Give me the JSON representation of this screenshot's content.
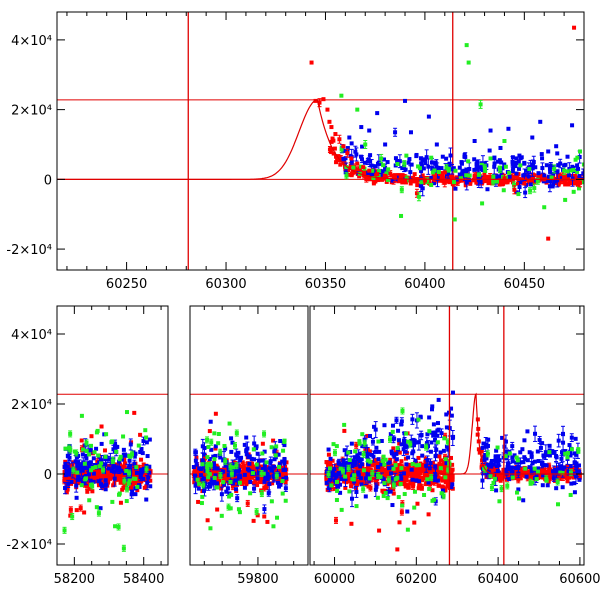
{
  "colors": {
    "model": "#e00000",
    "series_red": "#ff0000",
    "series_green": "#22ee22",
    "series_blue": "#0000ee",
    "axis": "#000000"
  },
  "chart_data": [
    {
      "type": "scatter",
      "title": "",
      "xlabel": "",
      "ylabel": "",
      "xlim": [
        60215,
        60480
      ],
      "ylim": [
        -26000,
        48000
      ],
      "xticks": [
        {
          "v": 60250,
          "label": "60250"
        },
        {
          "v": 60300,
          "label": "60300"
        },
        {
          "v": 60350,
          "label": "60350"
        },
        {
          "v": 60400,
          "label": "60400"
        },
        {
          "v": 60450,
          "label": "60450"
        }
      ],
      "yticks": [
        {
          "v": -20000,
          "label": "-2×10⁴"
        },
        {
          "v": 0,
          "label": "0"
        },
        {
          "v": 20000,
          "label": "2×10⁴"
        },
        {
          "v": 40000,
          "label": "4×10⁴"
        }
      ],
      "hlines": [
        0,
        22800
      ],
      "vlines": [
        60281,
        60414
      ],
      "model": {
        "peak_x": 60346,
        "peak_y": 22800,
        "rise_start": 60281,
        "rise_width": 13,
        "decay_tau": 8
      },
      "series": [
        {
          "color_key": "series_red",
          "points": [
            [
              60343,
              33500
            ],
            [
              60345,
              22500
            ],
            [
              60347,
              22000
            ],
            [
              60349,
              23000
            ],
            [
              60351,
              20000
            ],
            [
              60352,
              16500
            ],
            [
              60353,
              15000
            ],
            [
              60355,
              13000
            ],
            [
              60357,
              11500
            ],
            [
              60359,
              9500
            ],
            [
              60361,
              7500
            ],
            [
              60363,
              6000
            ],
            [
              60366,
              4500
            ],
            [
              60369,
              3500
            ],
            [
              60372,
              2500
            ],
            [
              60376,
              1500
            ],
            [
              60380,
              1000
            ],
            [
              60385,
              500
            ],
            [
              60390,
              -500
            ],
            [
              60395,
              0
            ],
            [
              60400,
              -300
            ],
            [
              60405,
              500
            ],
            [
              60410,
              -1000
            ],
            [
              60418,
              -400
            ],
            [
              60425,
              600
            ],
            [
              60430,
              -500
            ],
            [
              60440,
              300
            ],
            [
              60450,
              -1200
            ],
            [
              60460,
              0
            ],
            [
              60470,
              400
            ],
            [
              60478,
              -1000
            ],
            [
              60396,
              -4000
            ],
            [
              60410,
              2000
            ],
            [
              60445,
              -3000
            ],
            [
              60462,
              -17000
            ],
            [
              60475,
              43500
            ]
          ]
        },
        {
          "color_key": "series_green",
          "points": [
            [
              60358,
              24000
            ],
            [
              60366,
              20000
            ],
            [
              60370,
              10000
            ],
            [
              60378,
              6000
            ],
            [
              60388,
              -10500
            ],
            [
              60397,
              -5000
            ],
            [
              60404,
              2000
            ],
            [
              60412,
              3000
            ],
            [
              60415,
              -11500
            ],
            [
              60421,
              38500
            ],
            [
              60422,
              33500
            ],
            [
              60428,
              21500
            ],
            [
              60433,
              6000
            ],
            [
              60440,
              11000
            ],
            [
              60448,
              4000
            ],
            [
              60455,
              -2500
            ],
            [
              60460,
              -8000
            ],
            [
              60465,
              3000
            ],
            [
              60470,
              2500
            ],
            [
              60478,
              8000
            ]
          ]
        },
        {
          "color_key": "series_blue",
          "points": [
            [
              60362,
              12000
            ],
            [
              60368,
              15000
            ],
            [
              60372,
              14000
            ],
            [
              60376,
              19000
            ],
            [
              60380,
              10000
            ],
            [
              60385,
              13500
            ],
            [
              60390,
              22500
            ],
            [
              60393,
              13500
            ],
            [
              60398,
              6000
            ],
            [
              60402,
              18000
            ],
            [
              60406,
              10000
            ],
            [
              60409,
              6500
            ],
            [
              60420,
              7000
            ],
            [
              60425,
              11000
            ],
            [
              60428,
              3500
            ],
            [
              60433,
              14000
            ],
            [
              60438,
              9000
            ],
            [
              60442,
              14500
            ],
            [
              60446,
              6000
            ],
            [
              60450,
              4500
            ],
            [
              60454,
              12000
            ],
            [
              60458,
              16500
            ],
            [
              60462,
              8000
            ],
            [
              60466,
              9500
            ],
            [
              60470,
              4000
            ],
            [
              60474,
              15500
            ],
            [
              60477,
              3000
            ]
          ]
        }
      ]
    },
    {
      "type": "scatter",
      "title": "",
      "xlabel": "",
      "ylabel": "",
      "ylim": [
        -26000,
        48000
      ],
      "segments": [
        {
          "xlim": [
            58150,
            58470
          ],
          "x_start": 58170,
          "x_end": 58420,
          "density": 1.0,
          "base_spread": 3500
        },
        {
          "xlim": [
            59610,
            59940
          ],
          "x_start": 59620,
          "x_end": 59880,
          "density": 1.0,
          "base_spread": 3500
        },
        {
          "xlim": [
            59940,
            60610
          ],
          "x_start": 59980,
          "x_end": 60290,
          "density": 1.3,
          "base_spread": 4500,
          "transient_start": 60380,
          "transient_end": 60600
        }
      ],
      "xticks": [
        {
          "v": 58200,
          "label": "58200"
        },
        {
          "v": 58400,
          "label": "58400"
        },
        {
          "v": 59800,
          "label": "59800"
        },
        {
          "v": 60000,
          "label": "60000"
        },
        {
          "v": 60200,
          "label": "60200"
        },
        {
          "v": 60400,
          "label": "60400"
        },
        {
          "v": 60600,
          "label": "60600"
        }
      ],
      "yticks": [
        {
          "v": -20000,
          "label": "-2×10⁴"
        },
        {
          "v": 0,
          "label": "0"
        },
        {
          "v": 20000,
          "label": "2×10⁴"
        },
        {
          "v": 40000,
          "label": "4×10⁴"
        }
      ],
      "hlines": [
        0,
        22800
      ],
      "vlines": [
        60281,
        60414
      ],
      "model": {
        "peak_x": 60346,
        "peak_y": 22800,
        "rise_start": 60281,
        "rise_width": 13,
        "decay_tau": 8
      }
    }
  ]
}
